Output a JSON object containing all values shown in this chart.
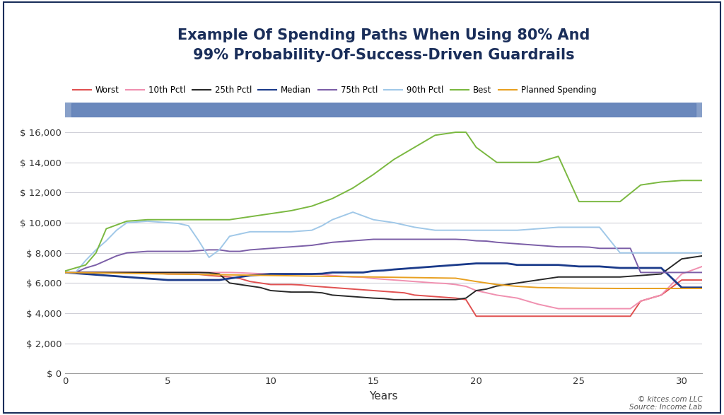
{
  "title": "Example Of Spending Paths When Using 80% And\n99% Probability-Of-Success-Driven Guardrails",
  "xlabel": "Years",
  "background_color": "#ffffff",
  "plot_bg_color": "#ffffff",
  "grid_color": "#d0d0d8",
  "guardrail_band_color": "#6080b8",
  "guardrail_band_alpha": 0.75,
  "ylim": [
    0,
    17000
  ],
  "xlim": [
    0,
    31
  ],
  "yticks": [
    0,
    2000,
    4000,
    6000,
    8000,
    10000,
    12000,
    14000,
    16000
  ],
  "xticks": [
    0,
    5,
    10,
    15,
    20,
    25,
    30
  ],
  "title_color": "#1a2e5a",
  "title_fontsize": 15,
  "footnote": "© kitces.com LLC\nSource: Income Lab",
  "outer_border_color": "#1a2e5a",
  "series": {
    "worst": {
      "label": "Worst",
      "color": "#e05050",
      "linewidth": 1.4,
      "x": [
        0,
        0.5,
        1,
        1.5,
        2,
        2.5,
        3,
        3.5,
        4,
        4.5,
        5,
        5.5,
        6,
        6.5,
        7,
        7.5,
        8,
        8.5,
        9,
        9.5,
        10,
        10.5,
        11,
        11.5,
        12,
        12.5,
        13,
        13.5,
        14,
        14.5,
        15,
        15.5,
        16,
        16.5,
        17,
        17.5,
        18,
        18.5,
        19,
        19.5,
        20,
        20.5,
        21,
        21.5,
        22,
        22.5,
        23,
        23.5,
        24,
        24.5,
        25,
        25.5,
        26,
        26.5,
        27,
        27.5,
        28,
        28.5,
        29,
        29.5,
        30,
        30.5,
        31
      ],
      "y": [
        6700,
        6700,
        6700,
        6700,
        6700,
        6700,
        6700,
        6700,
        6700,
        6650,
        6600,
        6600,
        6600,
        6580,
        6500,
        6450,
        6400,
        6300,
        6100,
        6000,
        5900,
        5900,
        5900,
        5870,
        5800,
        5750,
        5700,
        5650,
        5600,
        5550,
        5500,
        5450,
        5400,
        5350,
        5200,
        5150,
        5100,
        5050,
        5000,
        4900,
        3800,
        3800,
        3800,
        3800,
        3800,
        3800,
        3800,
        3800,
        3800,
        3800,
        3800,
        3800,
        3800,
        3800,
        3800,
        3800,
        4800,
        5000,
        5200,
        5700,
        6200,
        6200,
        6200
      ]
    },
    "pctl10": {
      "label": "10th Pctl",
      "color": "#f090b0",
      "linewidth": 1.4,
      "x": [
        0,
        0.5,
        1,
        1.5,
        2,
        2.5,
        3,
        3.5,
        4,
        4.5,
        5,
        5.5,
        6,
        6.5,
        7,
        7.5,
        8,
        8.5,
        9,
        9.5,
        10,
        10.5,
        11,
        11.5,
        12,
        12.5,
        13,
        13.5,
        14,
        14.5,
        15,
        15.5,
        16,
        16.5,
        17,
        17.5,
        18,
        18.5,
        19,
        19.5,
        20,
        20.5,
        21,
        21.5,
        22,
        22.5,
        23,
        23.5,
        24,
        24.5,
        25,
        25.5,
        26,
        26.5,
        27,
        27.5,
        28,
        28.5,
        29,
        29.5,
        30,
        30.5,
        31
      ],
      "y": [
        6700,
        6700,
        6700,
        6700,
        6700,
        6700,
        6700,
        6700,
        6700,
        6700,
        6700,
        6700,
        6700,
        6700,
        6700,
        6700,
        6700,
        6680,
        6650,
        6620,
        6600,
        6600,
        6600,
        6600,
        6600,
        6570,
        6500,
        6450,
        6400,
        6380,
        6300,
        6250,
        6200,
        6150,
        6100,
        6050,
        6000,
        5970,
        5900,
        5780,
        5500,
        5350,
        5200,
        5100,
        5000,
        4800,
        4600,
        4450,
        4300,
        4300,
        4300,
        4300,
        4300,
        4300,
        4300,
        4300,
        4800,
        5000,
        5200,
        5900,
        6600,
        6850,
        7100
      ]
    },
    "pctl25": {
      "label": "25th Pctl",
      "color": "#282828",
      "linewidth": 1.4,
      "x": [
        0,
        0.5,
        1,
        1.5,
        2,
        2.5,
        3,
        3.5,
        4,
        4.5,
        5,
        5.5,
        6,
        6.5,
        7,
        7.5,
        8,
        8.5,
        9,
        9.5,
        10,
        10.5,
        11,
        11.5,
        12,
        12.5,
        13,
        13.5,
        14,
        14.5,
        15,
        15.5,
        16,
        16.5,
        17,
        17.5,
        18,
        18.5,
        19,
        19.5,
        20,
        20.5,
        21,
        21.5,
        22,
        22.5,
        23,
        23.5,
        24,
        24.5,
        25,
        25.5,
        26,
        26.5,
        27,
        27.5,
        28,
        28.5,
        29,
        29.5,
        30,
        30.5,
        31
      ],
      "y": [
        6700,
        6700,
        6700,
        6700,
        6700,
        6700,
        6700,
        6700,
        6700,
        6700,
        6700,
        6700,
        6700,
        6700,
        6680,
        6600,
        6000,
        5900,
        5800,
        5700,
        5500,
        5450,
        5400,
        5400,
        5400,
        5350,
        5200,
        5150,
        5100,
        5050,
        5000,
        4970,
        4900,
        4900,
        4900,
        4900,
        4900,
        4900,
        4900,
        5000,
        5500,
        5600,
        5800,
        5900,
        6000,
        6100,
        6200,
        6300,
        6400,
        6400,
        6400,
        6400,
        6400,
        6400,
        6400,
        6450,
        6500,
        6550,
        6600,
        7100,
        7600,
        7700,
        7800
      ]
    },
    "median": {
      "label": "Median",
      "color": "#1a3a8a",
      "linewidth": 2.0,
      "x": [
        0,
        0.5,
        1,
        1.5,
        2,
        2.5,
        3,
        3.5,
        4,
        4.5,
        5,
        5.5,
        6,
        6.5,
        7,
        7.5,
        8,
        8.5,
        9,
        9.5,
        10,
        10.5,
        11,
        11.5,
        12,
        12.5,
        13,
        13.5,
        14,
        14.5,
        15,
        15.5,
        16,
        16.5,
        17,
        17.5,
        18,
        18.5,
        19,
        19.5,
        20,
        20.5,
        21,
        21.5,
        22,
        22.5,
        23,
        23.5,
        24,
        24.5,
        25,
        25.5,
        26,
        26.5,
        27,
        27.5,
        28,
        28.5,
        29,
        29.5,
        30,
        30.5,
        31
      ],
      "y": [
        6700,
        6650,
        6600,
        6550,
        6500,
        6450,
        6400,
        6350,
        6300,
        6250,
        6200,
        6200,
        6200,
        6200,
        6200,
        6200,
        6300,
        6400,
        6500,
        6550,
        6600,
        6600,
        6600,
        6600,
        6600,
        6620,
        6700,
        6700,
        6700,
        6700,
        6800,
        6830,
        6900,
        6950,
        7000,
        7050,
        7100,
        7150,
        7200,
        7250,
        7300,
        7300,
        7300,
        7300,
        7200,
        7200,
        7200,
        7200,
        7200,
        7150,
        7100,
        7100,
        7100,
        7050,
        7000,
        7000,
        7000,
        7000,
        7000,
        6350,
        5700,
        5700,
        5700
      ]
    },
    "pctl75": {
      "label": "75th Pctl",
      "color": "#7b5ea7",
      "linewidth": 1.4,
      "x": [
        0,
        0.5,
        1,
        1.5,
        2,
        2.5,
        3,
        3.5,
        4,
        4.5,
        5,
        5.5,
        6,
        6.5,
        7,
        7.5,
        8,
        8.5,
        9,
        9.5,
        10,
        10.5,
        11,
        11.5,
        12,
        12.5,
        13,
        13.5,
        14,
        14.5,
        15,
        15.5,
        16,
        16.5,
        17,
        17.5,
        18,
        18.5,
        19,
        19.5,
        20,
        20.5,
        21,
        21.5,
        22,
        22.5,
        23,
        23.5,
        24,
        24.5,
        25,
        25.5,
        26,
        26.5,
        27,
        27.5,
        28,
        28.5,
        29,
        29.5,
        30,
        30.5,
        31
      ],
      "y": [
        6700,
        6700,
        7000,
        7200,
        7500,
        7800,
        8000,
        8050,
        8100,
        8100,
        8100,
        8100,
        8100,
        8150,
        8200,
        8200,
        8100,
        8100,
        8200,
        8250,
        8300,
        8350,
        8400,
        8450,
        8500,
        8600,
        8700,
        8750,
        8800,
        8850,
        8900,
        8900,
        8900,
        8900,
        8900,
        8900,
        8900,
        8900,
        8900,
        8870,
        8800,
        8780,
        8700,
        8650,
        8600,
        8550,
        8500,
        8450,
        8400,
        8400,
        8400,
        8380,
        8300,
        8300,
        8300,
        8300,
        6700,
        6700,
        6700,
        6700,
        6700,
        6700,
        6700
      ]
    },
    "pctl90": {
      "label": "90th Pctl",
      "color": "#a0c8e8",
      "linewidth": 1.4,
      "x": [
        0,
        0.5,
        1,
        1.5,
        2,
        2.5,
        3,
        3.5,
        4,
        4.5,
        5,
        5.5,
        6,
        6.5,
        7,
        7.5,
        8,
        8.5,
        9,
        9.5,
        10,
        10.5,
        11,
        11.5,
        12,
        12.5,
        13,
        13.5,
        14,
        14.5,
        15,
        15.5,
        16,
        16.5,
        17,
        17.5,
        18,
        18.5,
        19,
        19.5,
        20,
        20.5,
        21,
        21.5,
        22,
        22.5,
        23,
        23.5,
        24,
        24.5,
        25,
        25.5,
        26,
        26.5,
        27,
        27.5,
        28,
        28.5,
        29,
        29.5,
        30,
        30.5,
        31
      ],
      "y": [
        6700,
        6700,
        7500,
        8200,
        8800,
        9500,
        10000,
        10050,
        10100,
        10050,
        10000,
        9950,
        9800,
        8800,
        7700,
        8200,
        9100,
        9250,
        9400,
        9400,
        9400,
        9400,
        9400,
        9450,
        9500,
        9800,
        10200,
        10450,
        10700,
        10450,
        10200,
        10100,
        10000,
        9850,
        9700,
        9600,
        9500,
        9500,
        9500,
        9500,
        9500,
        9500,
        9500,
        9500,
        9500,
        9550,
        9600,
        9650,
        9700,
        9700,
        9700,
        9700,
        9700,
        8850,
        8000,
        8000,
        8000,
        8000,
        8000,
        8000,
        8000,
        8000,
        8000
      ]
    },
    "best": {
      "label": "Best",
      "color": "#7ab840",
      "linewidth": 1.4,
      "x": [
        0,
        0.5,
        1,
        1.5,
        2,
        2.5,
        3,
        3.5,
        4,
        4.5,
        5,
        5.5,
        6,
        6.5,
        7,
        7.5,
        8,
        8.5,
        9,
        9.5,
        10,
        10.5,
        11,
        11.5,
        12,
        12.5,
        13,
        13.5,
        14,
        14.5,
        15,
        15.5,
        16,
        16.5,
        17,
        17.5,
        18,
        18.5,
        19,
        19.5,
        20,
        20.5,
        21,
        21.5,
        22,
        22.5,
        23,
        23.5,
        24,
        24.5,
        25,
        25.5,
        26,
        26.5,
        27,
        27.5,
        28,
        28.5,
        29,
        29.5,
        30,
        30.5,
        31
      ],
      "y": [
        6800,
        7000,
        7200,
        8000,
        9600,
        9850,
        10100,
        10150,
        10200,
        10200,
        10200,
        10200,
        10200,
        10200,
        10200,
        10200,
        10200,
        10300,
        10400,
        10500,
        10600,
        10700,
        10800,
        10950,
        11100,
        11350,
        11600,
        11950,
        12300,
        12750,
        13200,
        13700,
        14200,
        14600,
        15000,
        15400,
        15800,
        15900,
        16000,
        16000,
        15000,
        14500,
        14000,
        14000,
        14000,
        14000,
        14000,
        14200,
        14400,
        12900,
        11400,
        11400,
        11400,
        11400,
        11400,
        11950,
        12500,
        12600,
        12700,
        12750,
        12800,
        12800,
        12800
      ]
    },
    "planned": {
      "label": "Planned Spending",
      "color": "#e8a020",
      "linewidth": 1.4,
      "x": [
        0,
        1,
        2,
        3,
        4,
        5,
        6,
        7,
        8,
        9,
        10,
        11,
        12,
        13,
        14,
        15,
        16,
        17,
        18,
        19,
        20,
        21,
        22,
        23,
        24,
        25,
        26,
        27,
        28,
        29,
        30,
        31
      ],
      "y": [
        6700,
        6680,
        6660,
        6640,
        6620,
        6600,
        6580,
        6560,
        6540,
        6520,
        6500,
        6480,
        6460,
        6440,
        6420,
        6400,
        6380,
        6360,
        6340,
        6320,
        6100,
        5900,
        5780,
        5700,
        5680,
        5660,
        5650,
        5640,
        5640,
        5640,
        5640,
        5640
      ]
    }
  }
}
